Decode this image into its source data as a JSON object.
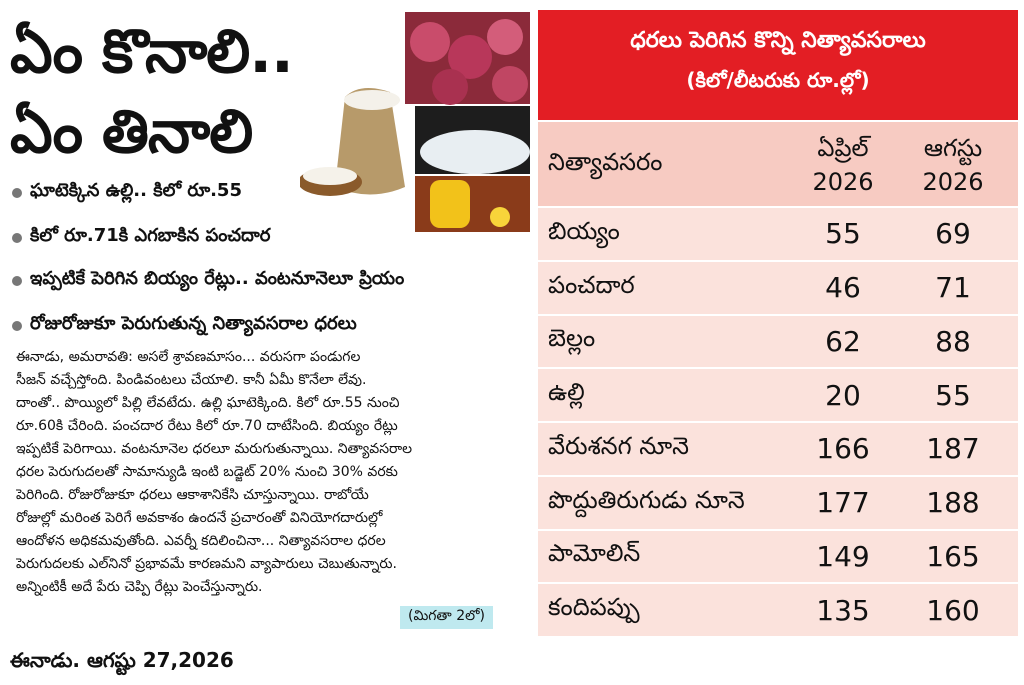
{
  "article": {
    "headline": [
      "ఏం కొనాలి..",
      "ఏం తినాలి"
    ],
    "bullets": [
      "ఘాటెక్కిన ఉల్లి.. కిలో రూ.55",
      "కిలో రూ.71కి ఎగబాకిన పంచదార",
      "ఇప్పటికే పెరిగిన బియ్యం రేట్లు.. వంటనూనెలూ ప్రియం",
      "రోజురోజుకూ పెరుగుతున్న నిత్యావసరాల ధరలు"
    ],
    "body_lines": [
      "ఈనాడు, అమరావతి: అసలే శ్రావణమాసం... వరుసగా పండుగల",
      "సీజన్ వచ్చేస్తోంది. పిండివంటలు చేయాలి. కానీ ఏమీ కొనేలా లేవు.",
      "దాంతో.. పొయ్యిలో పిల్లి లేవటేదు. ఉల్లి ఘాటెక్కింది. కిలో రూ.55 నుంచి",
      "రూ.60కి చేరింది. పంచదార రేటు కిలో రూ.70 దాటేసింది. బియ్యం రేట్లు",
      "ఇప్పటికే పెరిగాయి. వంటనూనెల ధరలూ మరుగుతున్నాయి. నిత్యావసరాల",
      "ధరల పెరుగుదలతో సామాన్యుడి ఇంటి బడ్జెట్ 20% నుంచి 30% వరకు",
      "పెరిగింది. రోజురోజుకూ ధరలు ఆకాశానికేసి చూస్తున్నాయి. రాబోయే",
      "రోజుల్లో మరింత పెరిగే అవకాశం ఉందనే ప్రచారంతో వినియోగదారుల్లో",
      "ఆందోళన అధికమవుతోంది. ఎవర్నీ కదిలించినా... నిత్యావసరాల ధరల",
      "పెరుగుదలకు ఎల్‌నినో ప్రభావమే కారణమని వ్యాపారులు చెబుతున్నారు.",
      "అన్నింటికీ అదే పేరు చెప్పి రేట్లు పెంచేస్తున్నారు."
    ],
    "continued": "(మిగతా 2లో)"
  },
  "table": {
    "title": "ధరలు పెరిగిన కొన్ని నిత్యావసరాలు",
    "subtitle": "(కిలో/లీటరుకు రూ.ల్లో)",
    "header": [
      "నిత్యావసరం",
      [
        "ఏప్రిల్",
        "2026"
      ],
      [
        "ఆగస్టు",
        "2026"
      ]
    ],
    "rows": [
      [
        "బియ్యం",
        55,
        69
      ],
      [
        "పంచదార",
        46,
        71
      ],
      [
        "బెల్లం",
        62,
        88
      ],
      [
        "ఉల్లి",
        20,
        55
      ],
      [
        "వేరుశనగ నూనె",
        166,
        187
      ],
      [
        "పొద్దుతిరుగుడు నూనె",
        177,
        188
      ],
      [
        "పామోలిన్",
        149,
        165
      ],
      [
        "కందిపప్పు",
        135,
        160
      ]
    ]
  },
  "footer": "ఈనాడు. ఆగష్టు 27,2026"
}
